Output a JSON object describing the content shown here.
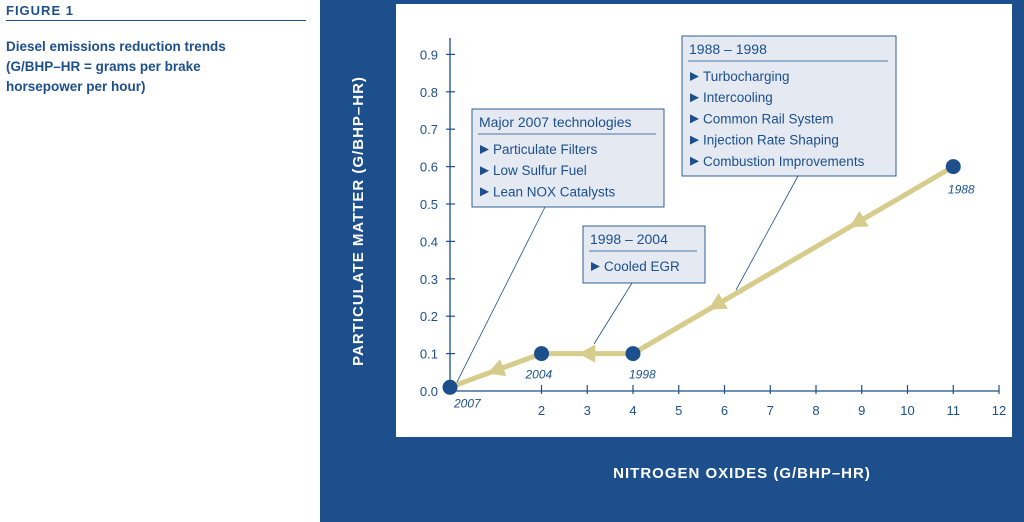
{
  "figure": {
    "label": "FIGURE 1",
    "caption_line1": "Diesel emissions reduction trends",
    "caption_line2": "(G/BHP–HR = grams per brake",
    "caption_line3": "horsepower per hour)"
  },
  "chart_data": {
    "type": "line",
    "title": "",
    "xlabel": "NITROGEN OXIDES (G/BHP–HR)",
    "ylabel": "PARTICULATE MATTER (G/BHP–HR)",
    "xlim": [
      0,
      12
    ],
    "ylim": [
      0,
      0.9
    ],
    "x_ticks": [
      2,
      3,
      4,
      5,
      6,
      7,
      8,
      9,
      10,
      11,
      12
    ],
    "y_ticks": [
      "0.0",
      "0.1",
      "0.2",
      "0.3",
      "0.4",
      "0.5",
      "0.6",
      "0.7",
      "0.8",
      "0.9"
    ],
    "grid": false,
    "series": [
      {
        "points": [
          {
            "x": 11,
            "y": 0.6,
            "label": "1988"
          },
          {
            "x": 4,
            "y": 0.1,
            "label": "1998"
          },
          {
            "x": 2,
            "y": 0.1,
            "label": "2004"
          },
          {
            "x": 0,
            "y": 0.01,
            "label": "2007"
          }
        ]
      }
    ],
    "annotations": [
      {
        "title": "1988 – 1998",
        "items": [
          "Turbocharging",
          "Intercooling",
          "Common Rail System",
          "Injection Rate Shaping",
          "Combustion Improvements"
        ]
      },
      {
        "title": "Major 2007 technologies",
        "items": [
          "Particulate Filters",
          "Low Sulfur Fuel",
          "Lean NOX Catalysts"
        ]
      },
      {
        "title": "1998 – 2004",
        "items": [
          "Cooled EGR"
        ]
      }
    ],
    "colors": {
      "panel": "#1c4f8c",
      "line": "#d6cc8c",
      "point": "#1c4f8c",
      "box_fill": "#e4e9f2"
    }
  }
}
